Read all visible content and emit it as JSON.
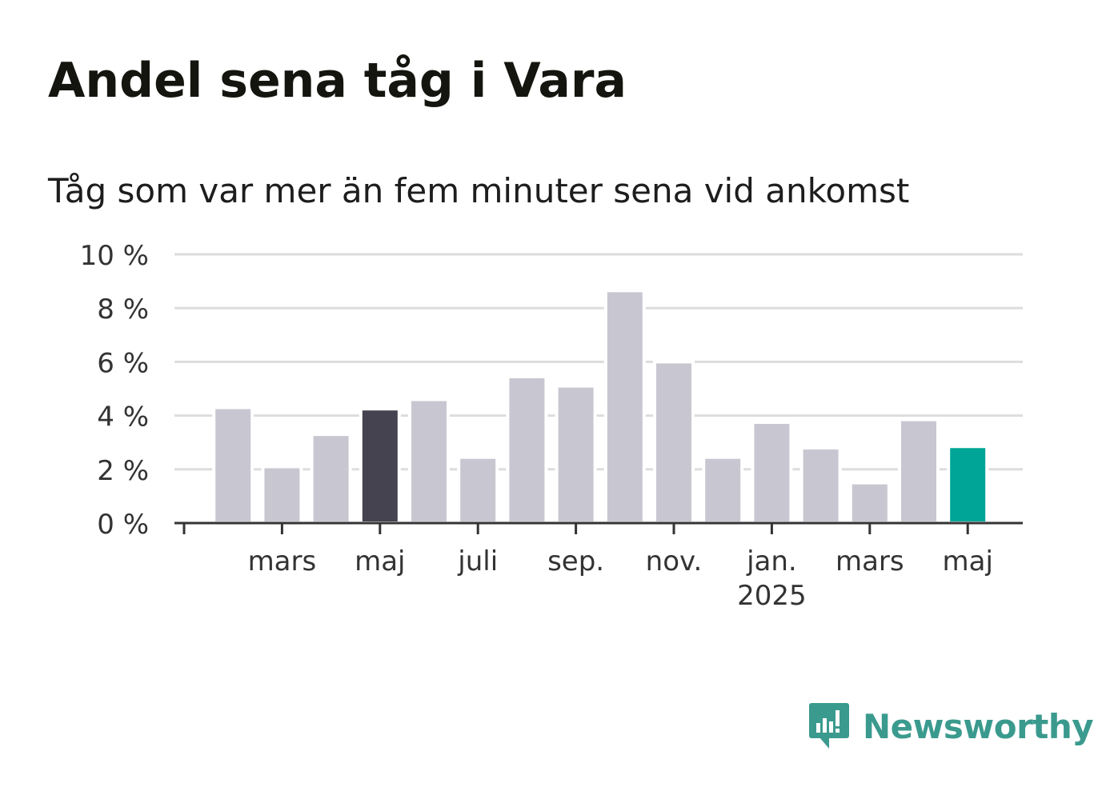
{
  "title": "Andel sena tåg i Vara",
  "subtitle": "Tåg som var mer än fem minuter sena vid ankomst",
  "brand": {
    "name": "Newsworthy"
  },
  "colors": {
    "bar_default": "#c8c7d1",
    "bar_highlight_dark": "#44434f",
    "bar_current": "#00a597",
    "grid": "#dddddd",
    "axis": "#333333",
    "brand": "#3b9a8e"
  },
  "chart_data": {
    "type": "bar",
    "title": "Andel sena tåg i Vara",
    "subtitle": "Tåg som var mer än fem minuter sena vid ankomst",
    "x": [
      "2024-02",
      "2024-03",
      "2024-04",
      "2024-05",
      "2024-06",
      "2024-07",
      "2024-08",
      "2024-09",
      "2024-10",
      "2024-11",
      "2024-12",
      "2025-01",
      "2025-02",
      "2025-03",
      "2025-04",
      "2025-05"
    ],
    "values": [
      4.3,
      2.1,
      3.3,
      4.25,
      4.6,
      2.45,
      5.45,
      5.1,
      8.65,
      6.0,
      2.45,
      3.75,
      2.8,
      1.5,
      3.85,
      2.85
    ],
    "highlight": {
      "dark": "2024-05",
      "current": "2025-05"
    },
    "ylim": [
      0,
      10
    ],
    "y_ticks": [
      0,
      2,
      4,
      6,
      8,
      10
    ],
    "y_tick_labels": [
      "0 %",
      "2 %",
      "4 %",
      "6 %",
      "8 %",
      "10 %"
    ],
    "x_ticks": [
      "2024-01",
      "2024-03",
      "2024-05",
      "2024-07",
      "2024-09",
      "2024-11",
      "2025-01",
      "2025-03",
      "2025-05"
    ],
    "x_tick_labels": [
      "",
      "mars",
      "maj",
      "juli",
      "sep.",
      "nov.",
      "jan.",
      "mars",
      "maj"
    ],
    "x_year_label": {
      "at": "2025-01",
      "text": "2025"
    },
    "grid": true,
    "xlabel": "",
    "ylabel": ""
  }
}
